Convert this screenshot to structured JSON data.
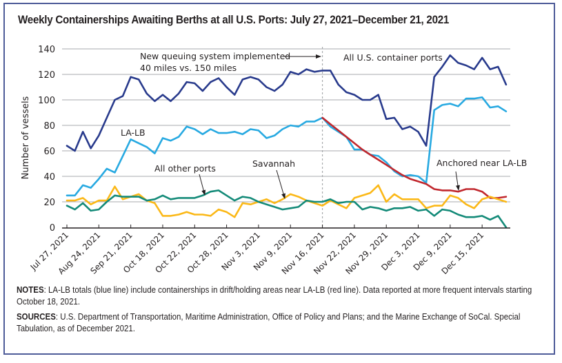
{
  "chart_data": {
    "type": "line",
    "title": "Weekly Containerships Awaiting Berths at all U.S. Ports: July 27, 2021–December 21, 2021",
    "xlabel": "",
    "ylabel": "Number of vessels",
    "ylim": [
      0,
      140
    ],
    "yticks": [
      0,
      20,
      40,
      60,
      80,
      100,
      120,
      140
    ],
    "grid": true,
    "n_points": 56,
    "x_tick_labels": [
      "Jul 27, 2021",
      "Aug 24, 2021",
      "Sep 21, 2021",
      "Oct 18, 2021",
      "Oct 22, 2021",
      "Oct 28, 2021",
      "Nov 3, 2021",
      "Nov 9, 2021",
      "Nov 16, 2021",
      "Nov 22, 2021",
      "Nov 29, 2021",
      "Dec 3, 2021",
      "Dec 9, 2021",
      "Dec 15, 2021"
    ],
    "x_tick_every": 4,
    "series": [
      {
        "name": "All U.S. container ports",
        "color": "#283a8c",
        "start_index": 0,
        "values": [
          64,
          60,
          75,
          62,
          72,
          86,
          100,
          103,
          118,
          116,
          105,
          99,
          104,
          99,
          105,
          114,
          113,
          107,
          114,
          117,
          110,
          104,
          116,
          118,
          116,
          110,
          107,
          112,
          122,
          120,
          124,
          122,
          123,
          123,
          112,
          106,
          104,
          100,
          100,
          104,
          85,
          86,
          77,
          79,
          75,
          64,
          118,
          126,
          135,
          129,
          127,
          124,
          133,
          124,
          126,
          112
        ]
      },
      {
        "name": "LA-LB",
        "color": "#27a9e1",
        "start_index": 0,
        "values": [
          25,
          25,
          33,
          31,
          38,
          46,
          43,
          56,
          69,
          66,
          63,
          58,
          70,
          68,
          71,
          79,
          77,
          73,
          77,
          74,
          74,
          75,
          73,
          77,
          76,
          70,
          72,
          77,
          80,
          79,
          83,
          83,
          86,
          79,
          75,
          71,
          61,
          61,
          57,
          56,
          51,
          44,
          40,
          41,
          40,
          35,
          92,
          96,
          97,
          95,
          101,
          101,
          102,
          94,
          95,
          91
        ]
      },
      {
        "name": "Anchored near LA-LB",
        "color": "#c1272d",
        "start_index": 32,
        "values": [
          86,
          81,
          76,
          71,
          66,
          61,
          57,
          53,
          49,
          45,
          41,
          38,
          36,
          34,
          30,
          29,
          29,
          28,
          30,
          30,
          28,
          23,
          23,
          24
        ]
      },
      {
        "name": "Savannah",
        "color": "#fbb817",
        "start_index": 0,
        "values": [
          21,
          21,
          23,
          18,
          21,
          21,
          32,
          22,
          24,
          26,
          21,
          19,
          9,
          9,
          10,
          12,
          10,
          10,
          9,
          14,
          12,
          8,
          19,
          18,
          20,
          22,
          19,
          22,
          26,
          24,
          21,
          19,
          17,
          21,
          18,
          15,
          23,
          25,
          27,
          33,
          20,
          26,
          22,
          22,
          22,
          15,
          17,
          17,
          25,
          23,
          18,
          15,
          22,
          24,
          22,
          20
        ]
      },
      {
        "name": "All other ports",
        "color": "#138a78",
        "start_index": 0,
        "values": [
          17,
          14,
          19,
          13,
          14,
          20,
          25,
          24,
          24,
          24,
          21,
          22,
          25,
          22,
          23,
          23,
          23,
          25,
          28,
          29,
          25,
          21,
          24,
          23,
          20,
          18,
          16,
          14,
          15,
          16,
          21,
          20,
          20,
          22,
          19,
          20,
          20,
          14,
          16,
          15,
          13,
          15,
          15,
          16,
          13,
          14,
          9,
          14,
          13,
          10,
          8,
          8,
          9,
          6,
          9,
          0
        ]
      }
    ],
    "vertical_marker": {
      "index": 32,
      "style": "dashed"
    },
    "annotations": [
      {
        "id": "queue",
        "lines": [
          "New queuing system implemented",
          "40 miles vs. 150 miles"
        ],
        "arrow": true
      },
      {
        "id": "all-us",
        "text": "All U.S. container ports"
      },
      {
        "id": "lalb",
        "text": "LA-LB"
      },
      {
        "id": "anchored",
        "text": "Anchored near LA-LB",
        "arrow": true
      },
      {
        "id": "other",
        "text": "All other ports",
        "arrow": true
      },
      {
        "id": "savannah",
        "text": "Savannah",
        "arrow": true
      }
    ]
  },
  "notes": {
    "notes_label": "NOTES",
    "notes_text": ": LA-LB totals (blue line) include containerships in drift/holding areas near LA-LB (red line). Data reported at more frequent intervals starting October 18, 2021.",
    "sources_label": "SOURCES",
    "sources_text": ": U.S. Department of Transportation, Maritime Administration, Office of Policy and Plans; and the Marine Exchange of SoCal. Special Tabulation, as of December 2021."
  }
}
